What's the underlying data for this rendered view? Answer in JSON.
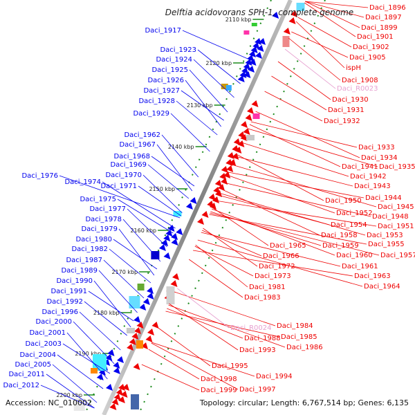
{
  "title": "Delftia acidovorans SPH-1, complete genome",
  "accession": "Accession: NC_010002",
  "topology": "Topology: circular; Length: 6,767,514 bp; Genes: 6,135",
  "colors": {
    "left_strand": "#0000ee",
    "right_strand": "#ee0000",
    "rna": "#e7a0d0",
    "backbone": "#808080",
    "ticks": "#1a8a1a"
  },
  "kbp_ticks": [
    "2110 kbp",
    "2120 kbp",
    "2130 kbp",
    "2140 kbp",
    "2150 kbp",
    "2160 kbp",
    "2170 kbp",
    "2180 kbp",
    "2190 kbp",
    "2200 kbp"
  ],
  "left_labels": [
    "Daci_1917",
    "Daci_1923",
    "Daci_1924",
    "Daci_1925",
    "Daci_1926",
    "Daci_1927",
    "Daci_1928",
    "Daci_1929",
    "Daci_1962",
    "Daci_1967",
    "Daci_1968",
    "Daci_1969",
    "Daci_1970",
    "Daci_1976",
    "Daci_1974",
    "Daci_1971",
    "Daci_1975",
    "Daci_1977",
    "Daci_1978",
    "Daci_1979",
    "Daci_1980",
    "Daci_1982",
    "Daci_1987",
    "Daci_1989",
    "Daci_1990",
    "Daci_1991",
    "Daci_1992",
    "Daci_1996",
    "Daci_2000",
    "Daci_2001",
    "Daci_2003",
    "Daci_2004",
    "Daci_2005",
    "Daci_2011",
    "Daci_2012"
  ],
  "right_labels": [
    "Daci_1896",
    "Daci_1897",
    "Daci_1899",
    "Daci_1901",
    "Daci_1902",
    "Daci_1905",
    "ispH",
    "Daci_1908",
    "Daci_1930",
    "Daci_1931",
    "Daci_1932",
    "Daci_1933",
    "Daci_1934",
    "Daci_1941",
    "Daci_1935",
    "Daci_1942",
    "Daci_1943",
    "Daci_1944",
    "Daci_1950",
    "Daci_1945",
    "Daci_1952",
    "Daci_1948",
    "Daci_1954",
    "Daci_1951",
    "Daci_1958",
    "Daci_1953",
    "Daci_1965",
    "Daci_1959",
    "Daci_1955",
    "Daci_1966",
    "Daci_1960",
    "Daci_1957",
    "Daci_1972",
    "Daci_1961",
    "Daci_1973",
    "Daci_1963",
    "Daci_1964",
    "Daci_1981",
    "Daci_1983",
    "Daci_1984",
    "Daci_1988",
    "Daci_1985",
    "Daci_1993",
    "Daci_1986",
    "Daci_1995",
    "Daci_1994",
    "Daci_1998",
    "Daci_1999",
    "Daci_1997"
  ],
  "rna_labels": [
    "Daci_R0023",
    "Daci_R0024"
  ]
}
